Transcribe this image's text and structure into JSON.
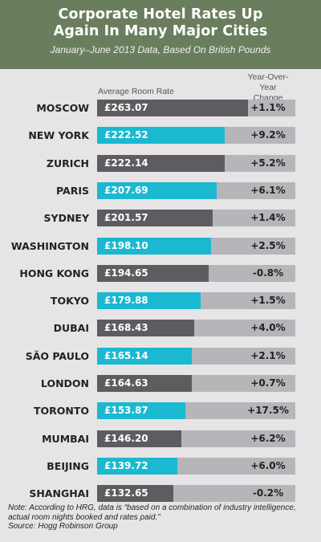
{
  "header": {
    "title_line1": "Corporate Hotel Rates Up",
    "title_line2": "Again In Many Major Cities",
    "subtitle": "January–June 2013 Data, Based On British Pounds"
  },
  "columns": {
    "rate_label": "Average Room Rate",
    "change_label_line1": "Year-Over-Year",
    "change_label_line2": "Change"
  },
  "chart_data": {
    "type": "bar",
    "orientation": "horizontal",
    "title": "Corporate Hotel Rates Up Again In Many Major Cities",
    "subtitle": "January–June 2013 Data, Based On British Pounds",
    "xlabel": "Average Room Rate",
    "xlim": [
      0,
      345
    ],
    "categories": [
      "MOSCOW",
      "NEW YORK",
      "ZURICH",
      "PARIS",
      "SYDNEY",
      "WASHINGTON",
      "HONG KONG",
      "TOKYO",
      "DUBAI",
      "SÃO PAULO",
      "LONDON",
      "TORONTO",
      "MUMBAI",
      "BEIJING",
      "SHANGHAI"
    ],
    "values": [
      263.07,
      222.52,
      222.14,
      207.69,
      201.57,
      198.1,
      194.65,
      179.88,
      168.43,
      165.14,
      164.63,
      153.87,
      146.2,
      139.72,
      132.65
    ],
    "value_labels": [
      "£263.07",
      "£222.52",
      "£222.14",
      "£207.69",
      "£201.57",
      "£198.10",
      "£194.65",
      "£179.88",
      "£168.43",
      "£165.14",
      "£164.63",
      "£153.87",
      "£146.20",
      "£139.72",
      "£132.65"
    ],
    "changes": [
      "+1.1%",
      "+9.2%",
      "+5.2%",
      "+6.1%",
      "+1.4%",
      "+2.5%",
      "-0.8%",
      "+1.5%",
      "+4.0%",
      "+2.1%",
      "+0.7%",
      "+17.5%",
      "+6.2%",
      "+6.0%",
      "-0.2%"
    ],
    "change_label": "Year-Over-Year Change",
    "colors": {
      "bar_dark": "#5d5c61",
      "bar_cyan": "#1bb8d1",
      "track": "#b6b5ba",
      "header": "#6a7d5d",
      "background": "#e7e4e5"
    }
  },
  "footer": {
    "note": "Note: According to HRG, data is “based on a combination of industry intelligence, actual room nights booked and rates paid.”",
    "source": "Source: Hogg Robinson Group"
  }
}
